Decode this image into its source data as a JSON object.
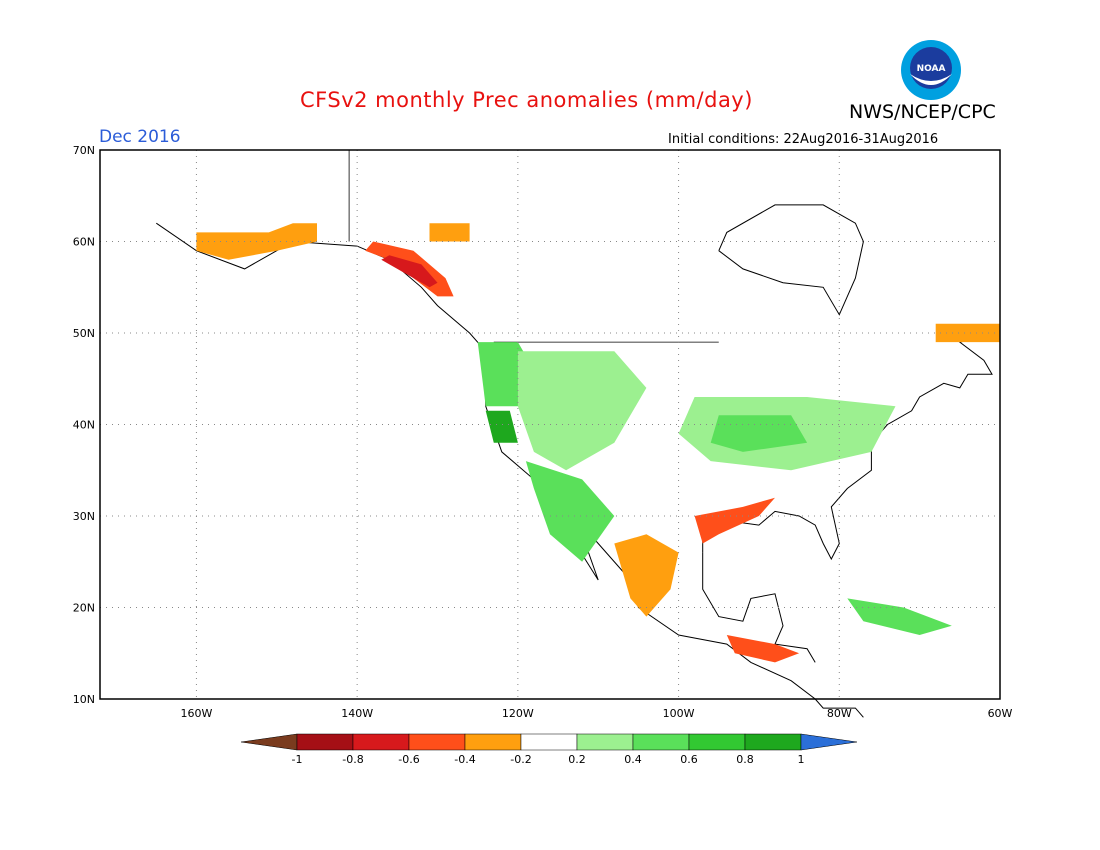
{
  "header": {
    "title": "CFSv2 monthly Prec anomalies (mm/day)",
    "agency": "NWS/NCEP/CPC",
    "logo_text": "NOAA",
    "period": "Dec 2016",
    "initial_conditions": "Initial conditions: 22Aug2016-31Aug2016"
  },
  "map": {
    "projection": "lat-lon",
    "lon_range": [
      -172,
      -60
    ],
    "lat_range": [
      10,
      70
    ],
    "lat_labels": [
      "10N",
      "20N",
      "30N",
      "40N",
      "50N",
      "60N",
      "70N"
    ],
    "lat_values": [
      10,
      20,
      30,
      40,
      50,
      60,
      70
    ],
    "lon_labels": [
      "160W",
      "140W",
      "120W",
      "100W",
      "80W",
      "60W"
    ],
    "lon_values": [
      -160,
      -140,
      -120,
      -100,
      -80,
      -60
    ],
    "grid": "dotted",
    "anomaly_regions": [
      {
        "name": "alaska-south-coast",
        "class": "-0.4..-0.2",
        "pts": [
          [
            -160,
            61
          ],
          [
            -151,
            61
          ],
          [
            -148,
            62
          ],
          [
            -145,
            62
          ],
          [
            -145,
            60
          ],
          [
            -150,
            59
          ],
          [
            -156,
            58
          ],
          [
            -160,
            59
          ]
        ]
      },
      {
        "name": "alaska-panhandle",
        "class": "-0.6..-0.4",
        "pts": [
          [
            -138,
            60
          ],
          [
            -133,
            59
          ],
          [
            -129,
            56
          ],
          [
            -128,
            54
          ],
          [
            -130,
            54
          ],
          [
            -133,
            56
          ],
          [
            -136,
            58
          ],
          [
            -139,
            59
          ]
        ]
      },
      {
        "name": "bc-coast-dry",
        "class": "-0.8..-0.6",
        "pts": [
          [
            -136,
            58.5
          ],
          [
            -132,
            57.5
          ],
          [
            -130,
            55.5
          ],
          [
            -131,
            55
          ],
          [
            -134,
            56.5
          ],
          [
            -137,
            58
          ]
        ]
      },
      {
        "name": "northern-bc-orange",
        "class": "-0.4..-0.2",
        "pts": [
          [
            -131,
            62
          ],
          [
            -126,
            62
          ],
          [
            -126,
            60
          ],
          [
            -131,
            60
          ]
        ]
      },
      {
        "name": "labrador-orange",
        "class": "-0.4..-0.2",
        "pts": [
          [
            -68,
            51
          ],
          [
            -60,
            51
          ],
          [
            -60,
            49
          ],
          [
            -68,
            49
          ]
        ]
      },
      {
        "name": "pacific-northwest-wet",
        "class": "0.4..0.6",
        "pts": [
          [
            -125,
            49
          ],
          [
            -120,
            49
          ],
          [
            -118,
            46
          ],
          [
            -120,
            42
          ],
          [
            -124,
            42
          ]
        ]
      },
      {
        "name": "northern-california-wet",
        "class": "0.8..1",
        "pts": [
          [
            -124,
            41.5
          ],
          [
            -121,
            41.5
          ],
          [
            -120,
            38
          ],
          [
            -123,
            38
          ]
        ]
      },
      {
        "name": "intermountain-wet",
        "class": "0.2..0.4",
        "pts": [
          [
            -120,
            48
          ],
          [
            -108,
            48
          ],
          [
            -104,
            44
          ],
          [
            -108,
            38
          ],
          [
            -114,
            35
          ],
          [
            -118,
            37
          ],
          [
            -120,
            42
          ]
        ]
      },
      {
        "name": "southwest-baja-wet",
        "class": "0.4..0.6",
        "pts": [
          [
            -119,
            36
          ],
          [
            -112,
            34
          ],
          [
            -108,
            30
          ],
          [
            -112,
            25
          ],
          [
            -116,
            28
          ],
          [
            -118,
            33
          ]
        ]
      },
      {
        "name": "midwest-ohio-valley-wet",
        "class": "0.2..0.4",
        "pts": [
          [
            -98,
            43
          ],
          [
            -84,
            43
          ],
          [
            -73,
            42
          ],
          [
            -76,
            37
          ],
          [
            -86,
            35
          ],
          [
            -96,
            36
          ],
          [
            -100,
            39
          ]
        ]
      },
      {
        "name": "great-lakes-core-wet",
        "class": "0.4..0.6",
        "pts": [
          [
            -95,
            41
          ],
          [
            -86,
            41
          ],
          [
            -84,
            38
          ],
          [
            -92,
            37
          ],
          [
            -96,
            38
          ]
        ]
      },
      {
        "name": "gulf-coast-dry",
        "class": "-0.6..-0.4",
        "pts": [
          [
            -98,
            30
          ],
          [
            -92,
            31
          ],
          [
            -88,
            32
          ],
          [
            -90,
            30
          ],
          [
            -95,
            28
          ],
          [
            -97,
            27
          ]
        ]
      },
      {
        "name": "mexico-pacific-dry",
        "class": "-0.4..-0.2",
        "pts": [
          [
            -108,
            27
          ],
          [
            -104,
            28
          ],
          [
            -100,
            26
          ],
          [
            -101,
            22
          ],
          [
            -104,
            19
          ],
          [
            -106,
            21
          ]
        ]
      },
      {
        "name": "central-america-dry",
        "class": "-0.6..-0.4",
        "pts": [
          [
            -94,
            17
          ],
          [
            -88,
            16
          ],
          [
            -85,
            15
          ],
          [
            -88,
            14
          ],
          [
            -93,
            15
          ]
        ]
      },
      {
        "name": "caribbean-wet",
        "class": "0.4..0.6",
        "pts": [
          [
            -79,
            21
          ],
          [
            -72,
            20
          ],
          [
            -66,
            18
          ],
          [
            -70,
            17
          ],
          [
            -77,
            18.5
          ]
        ]
      }
    ]
  },
  "colorbar": {
    "labels": [
      "-1",
      "-0.8",
      "-0.6",
      "-0.4",
      "-0.2",
      "0.2",
      "0.4",
      "0.6",
      "0.8",
      "1"
    ],
    "colors": {
      "below_-1": "#7a3b1e",
      "-1..-0.8": "#a50f15",
      "-0.8..-0.6": "#d7191c",
      "-0.6..-0.4": "#ff4f1a",
      "-0.4..-0.2": "#ff9f0f",
      "-0.2..0.2": "#ffffff",
      "0.2..0.4": "#9cf090",
      "0.4..0.6": "#5ae05a",
      "0.6..0.8": "#32c832",
      "0.8..1": "#1ea81e",
      "above_1": "#2b6fd8"
    }
  }
}
